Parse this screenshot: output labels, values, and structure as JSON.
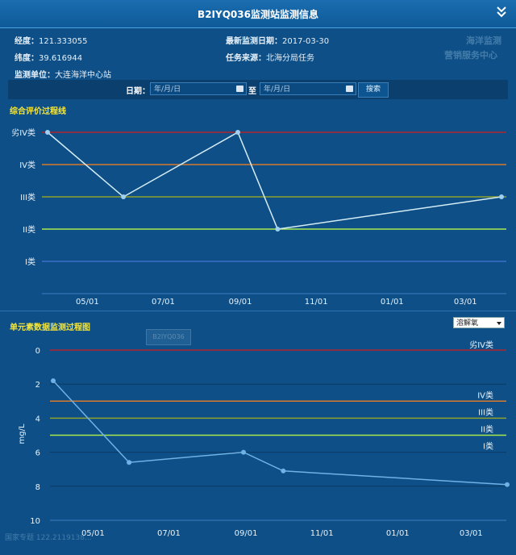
{
  "header": {
    "title": "B2IYQ036监测站监测信息"
  },
  "info": {
    "lng_label": "经度：",
    "lng": "121.333055",
    "lat_label": "纬度：",
    "lat": "39.616944",
    "unit_label": "监测单位：",
    "unit": "大连海洋中心站",
    "date_label": "最新监测日期：",
    "date": "2017-03-30",
    "task_label": "任务来源：",
    "task": "北海分局任务"
  },
  "watermark": {
    "line1": "海洋监测",
    "line2": "营销服务中心",
    "bottom": "国家专题 122.2119138...",
    "mid": "B2IYQ036"
  },
  "search": {
    "date_label": "日期：",
    "from_placeholder": "年/月/日",
    "to_label": "至",
    "to_placeholder": "年/月/日",
    "button": "搜索"
  },
  "chart1": {
    "title": "综合评价过程线"
  },
  "chart2": {
    "title": "单元素数据监测过程图",
    "select": "溶解氧"
  },
  "chart_data": [
    {
      "type": "line",
      "title": "综合评价过程线",
      "x_ticks": [
        "05/01",
        "07/01",
        "09/01",
        "11/01",
        "01/01",
        "03/01"
      ],
      "y_categories": [
        "I类",
        "II类",
        "III类",
        "IV类",
        "劣IV类"
      ],
      "series": [
        {
          "x": [
            "2016-03-30",
            "2016-05-30",
            "2016-08-30",
            "2016-10-01",
            "2017-03-30"
          ],
          "y": [
            "劣IV类",
            "III类",
            "劣IV类",
            "II类",
            "III类"
          ]
        }
      ],
      "threshold_lines": [
        {
          "name": "劣IV类",
          "color": "#b3232d"
        },
        {
          "name": "IV类",
          "color": "#d97a2d"
        },
        {
          "name": "III类",
          "color": "#8ea12e"
        },
        {
          "name": "II类",
          "color": "#a9e84f"
        },
        {
          "name": "I类",
          "color": "#3b6fc7"
        }
      ]
    },
    {
      "type": "line",
      "title": "单元素数据监测过程图",
      "ylabel": "mg/L",
      "ylim": [
        0,
        10
      ],
      "y_ticks": [
        "0",
        "2",
        "4",
        "6",
        "8",
        "10"
      ],
      "y_inverted": true,
      "x_ticks": [
        "05/01",
        "07/01",
        "09/01",
        "11/01",
        "01/01",
        "03/01"
      ],
      "series": [
        {
          "x": [
            "2016-03-30",
            "2016-05-30",
            "2016-08-30",
            "2016-10-01",
            "2017-03-30"
          ],
          "y": [
            1.8,
            6.6,
            6.0,
            7.1,
            7.9
          ]
        }
      ],
      "threshold_lines": [
        {
          "name": "劣IV类",
          "value": 0,
          "color": "#b3232d"
        },
        {
          "name": "IV类",
          "value": 3,
          "color": "#d97a2d"
        },
        {
          "name": "III类",
          "value": 4,
          "color": "#8ea12e"
        },
        {
          "name": "II类",
          "value": 5,
          "color": "#a9e84f"
        },
        {
          "name": "I类",
          "value": 6,
          "color": "#3b6fc7"
        }
      ]
    }
  ]
}
